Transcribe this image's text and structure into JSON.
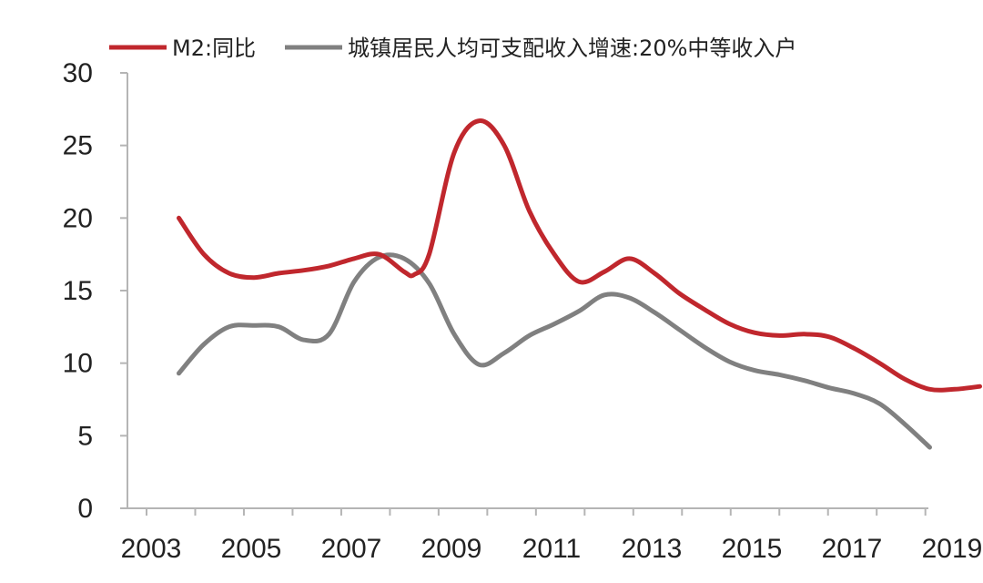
{
  "chart_data": {
    "type": "line",
    "title": "",
    "xlabel": "",
    "ylabel": "",
    "xlim": [
      2003,
      2019
    ],
    "ylim": [
      0,
      30
    ],
    "x_ticks": [
      "2003",
      "2005",
      "2007",
      "2009",
      "2011",
      "2013",
      "2015",
      "2017",
      "2019"
    ],
    "y_ticks": [
      "0",
      "5",
      "10",
      "15",
      "20",
      "25",
      "30"
    ],
    "grid": false,
    "legend_position": "top",
    "series": [
      {
        "name": "M2:同比",
        "color": "#c0272d",
        "points": [
          [
            2003.5,
            20.0
          ],
          [
            2004.0,
            17.5
          ],
          [
            2004.5,
            16.2
          ],
          [
            2005.0,
            15.9
          ],
          [
            2005.5,
            16.2
          ],
          [
            2006.0,
            16.4
          ],
          [
            2006.5,
            16.7
          ],
          [
            2007.0,
            17.2
          ],
          [
            2007.5,
            17.5
          ],
          [
            2008.0,
            16.3
          ],
          [
            2008.2,
            16.1
          ],
          [
            2008.5,
            17.5
          ],
          [
            2009.0,
            24.5
          ],
          [
            2009.5,
            26.7
          ],
          [
            2010.0,
            25.0
          ],
          [
            2010.5,
            20.5
          ],
          [
            2011.0,
            17.5
          ],
          [
            2011.5,
            15.6
          ],
          [
            2012.0,
            16.3
          ],
          [
            2012.5,
            17.2
          ],
          [
            2013.0,
            16.2
          ],
          [
            2013.5,
            14.8
          ],
          [
            2014.0,
            13.7
          ],
          [
            2014.5,
            12.7
          ],
          [
            2015.0,
            12.1
          ],
          [
            2015.5,
            11.9
          ],
          [
            2016.0,
            12.0
          ],
          [
            2016.5,
            11.8
          ],
          [
            2017.0,
            11.0
          ],
          [
            2017.5,
            10.0
          ],
          [
            2018.0,
            8.9
          ],
          [
            2018.5,
            8.2
          ],
          [
            2019.0,
            8.2
          ],
          [
            2019.5,
            8.4
          ]
        ]
      },
      {
        "name": "城镇居民人均可支配收入增速:20%中等收入户",
        "color": "#808080",
        "points": [
          [
            2003.5,
            9.3
          ],
          [
            2004.0,
            11.3
          ],
          [
            2004.5,
            12.5
          ],
          [
            2005.0,
            12.6
          ],
          [
            2005.5,
            12.5
          ],
          [
            2006.0,
            11.6
          ],
          [
            2006.5,
            12.0
          ],
          [
            2007.0,
            15.6
          ],
          [
            2007.5,
            17.3
          ],
          [
            2008.0,
            17.2
          ],
          [
            2008.5,
            15.5
          ],
          [
            2009.0,
            12.0
          ],
          [
            2009.5,
            9.9
          ],
          [
            2010.0,
            10.7
          ],
          [
            2010.5,
            11.9
          ],
          [
            2011.0,
            12.7
          ],
          [
            2011.5,
            13.6
          ],
          [
            2012.0,
            14.7
          ],
          [
            2012.5,
            14.5
          ],
          [
            2013.0,
            13.5
          ],
          [
            2013.5,
            12.3
          ],
          [
            2014.0,
            11.1
          ],
          [
            2014.5,
            10.1
          ],
          [
            2015.0,
            9.5
          ],
          [
            2015.5,
            9.2
          ],
          [
            2016.0,
            8.8
          ],
          [
            2016.5,
            8.3
          ],
          [
            2017.0,
            7.9
          ],
          [
            2017.5,
            7.2
          ],
          [
            2018.0,
            5.8
          ],
          [
            2018.5,
            4.2
          ]
        ]
      }
    ]
  }
}
